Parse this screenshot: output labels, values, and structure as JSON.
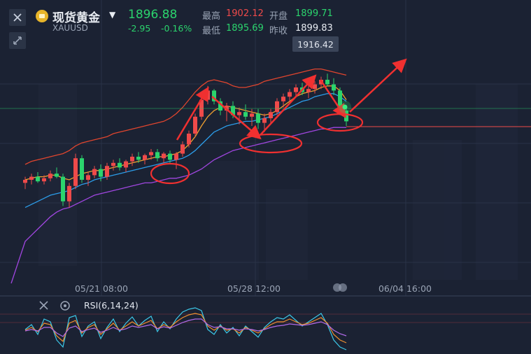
{
  "header": {
    "title": "现货黄金",
    "symbol": "XAUUSD",
    "price": "1896.88",
    "change": "-2.95",
    "change_pct": "-0.16%",
    "high_label": "最高",
    "high_value": "1902.12",
    "open_label": "开盘",
    "open_value": "1899.71",
    "low_label": "最低",
    "low_value": "1895.69",
    "prev_close_label": "昨收",
    "prev_close_value": "1899.83",
    "price_tag": "1916.42"
  },
  "icons": {
    "close": "close-icon",
    "collapse": "collapse-arrows-icon",
    "coin": "gold-coin-icon",
    "dropdown": "caret-down-icon",
    "settings": "gear-icon"
  },
  "colors": {
    "background": "#1b2233",
    "up": "#ef4a4a",
    "down": "#2bd46d",
    "annotation": "#f03030"
  },
  "chart_data": [
    {
      "type": "candlestick",
      "x_ticks": [
        "05/21 08:00",
        "05/28 12:00",
        "06/04 16:00"
      ],
      "ohlc": [
        [
          1878,
          1882,
          1874,
          1880
        ],
        [
          1880,
          1884,
          1877,
          1882
        ],
        [
          1882,
          1885,
          1878,
          1879
        ],
        [
          1879,
          1883,
          1877,
          1881
        ],
        [
          1881,
          1886,
          1879,
          1884
        ],
        [
          1884,
          1888,
          1881,
          1882
        ],
        [
          1882,
          1884,
          1863,
          1866
        ],
        [
          1866,
          1878,
          1862,
          1876
        ],
        [
          1876,
          1897,
          1874,
          1894
        ],
        [
          1894,
          1896,
          1878,
          1880
        ],
        [
          1880,
          1885,
          1876,
          1883
        ],
        [
          1883,
          1889,
          1881,
          1887
        ],
        [
          1887,
          1890,
          1879,
          1882
        ],
        [
          1882,
          1891,
          1880,
          1889
        ],
        [
          1889,
          1893,
          1886,
          1891
        ],
        [
          1891,
          1894,
          1886,
          1888
        ],
        [
          1888,
          1893,
          1885,
          1892
        ],
        [
          1892,
          1897,
          1889,
          1895
        ],
        [
          1895,
          1898,
          1891,
          1893
        ],
        [
          1893,
          1897,
          1890,
          1896
        ],
        [
          1896,
          1900,
          1893,
          1898
        ],
        [
          1898,
          1900,
          1892,
          1894
        ],
        [
          1894,
          1898,
          1891,
          1897
        ],
        [
          1897,
          1899,
          1891,
          1893
        ],
        [
          1893,
          1898,
          1887,
          1897
        ],
        [
          1897,
          1905,
          1895,
          1903
        ],
        [
          1903,
          1912,
          1901,
          1910
        ],
        [
          1910,
          1923,
          1908,
          1921
        ],
        [
          1921,
          1935,
          1919,
          1932
        ],
        [
          1932,
          1941,
          1929,
          1938
        ],
        [
          1938,
          1939,
          1929,
          1931
        ],
        [
          1931,
          1933,
          1922,
          1925
        ],
        [
          1925,
          1930,
          1918,
          1928
        ],
        [
          1928,
          1931,
          1920,
          1922
        ],
        [
          1922,
          1927,
          1916,
          1924
        ],
        [
          1924,
          1929,
          1919,
          1921
        ],
        [
          1921,
          1926,
          1915,
          1923
        ],
        [
          1923,
          1926,
          1913,
          1917
        ],
        [
          1917,
          1923,
          1911,
          1920
        ],
        [
          1920,
          1926,
          1917,
          1924
        ],
        [
          1924,
          1933,
          1922,
          1931
        ],
        [
          1931,
          1936,
          1927,
          1934
        ],
        [
          1934,
          1939,
          1930,
          1937
        ],
        [
          1937,
          1942,
          1934,
          1940
        ],
        [
          1940,
          1943,
          1935,
          1937
        ],
        [
          1937,
          1941,
          1933,
          1939
        ],
        [
          1939,
          1944,
          1936,
          1942
        ],
        [
          1942,
          1947,
          1939,
          1945
        ],
        [
          1945,
          1949,
          1941,
          1942
        ],
        [
          1942,
          1946,
          1935,
          1938
        ],
        [
          1938,
          1940,
          1922,
          1925
        ],
        [
          1925,
          1928,
          1915,
          1918
        ]
      ],
      "overlays": [
        {
          "color": "#e0452e",
          "values": [
            1890,
            1892,
            1893,
            1894,
            1895,
            1896,
            1897,
            1899,
            1902,
            1904,
            1905,
            1906,
            1907,
            1908,
            1910,
            1911,
            1912,
            1913,
            1914,
            1915,
            1916,
            1917,
            1918,
            1920,
            1923,
            1927,
            1932,
            1937,
            1941,
            1944,
            1945,
            1944,
            1943,
            1941,
            1940,
            1940,
            1941,
            1942,
            1944,
            1945,
            1946,
            1947,
            1948,
            1949,
            1950,
            1951,
            1952,
            1952,
            1951,
            1950,
            1949,
            1948
          ]
        },
        {
          "color": "#f0a030",
          "values": [
            1880,
            1881,
            1882,
            1882,
            1883,
            1883,
            1881,
            1880,
            1882,
            1884,
            1885,
            1886,
            1886,
            1887,
            1888,
            1889,
            1890,
            1891,
            1892,
            1893,
            1894,
            1895,
            1895,
            1896,
            1897,
            1899,
            1903,
            1908,
            1915,
            1921,
            1925,
            1927,
            1928,
            1927,
            1926,
            1925,
            1924,
            1923,
            1922,
            1923,
            1925,
            1928,
            1931,
            1934,
            1936,
            1937,
            1938,
            1940,
            1941,
            1941,
            1938,
            1932
          ]
        },
        {
          "color": "#2c9ce8",
          "values": [
            1862,
            1864,
            1866,
            1868,
            1870,
            1871,
            1872,
            1873,
            1875,
            1877,
            1878,
            1880,
            1881,
            1882,
            1883,
            1884,
            1885,
            1886,
            1887,
            1888,
            1889,
            1890,
            1891,
            1892,
            1893,
            1894,
            1896,
            1899,
            1903,
            1907,
            1911,
            1913,
            1915,
            1916,
            1917,
            1918,
            1918,
            1919,
            1920,
            1921,
            1923,
            1925,
            1927,
            1929,
            1931,
            1932,
            1934,
            1935,
            1936,
            1936,
            1934,
            1931
          ]
        },
        {
          "color": "#a046e0",
          "values": [
            1840,
            1844,
            1848,
            1852,
            1856,
            1859,
            1861,
            1862,
            1864,
            1866,
            1868,
            1870,
            1871,
            1872,
            1873,
            1874,
            1875,
            1876,
            1877,
            1878,
            1878,
            1879,
            1880,
            1881,
            1881,
            1882,
            1883,
            1885,
            1887,
            1890,
            1893,
            1895,
            1897,
            1899,
            1900,
            1901,
            1902,
            1903,
            1904,
            1905,
            1906,
            1907,
            1908,
            1909,
            1910,
            1911,
            1912,
            1913,
            1913,
            1914,
            1914,
            1914
          ]
        }
      ]
    },
    {
      "type": "line",
      "title": "RSI(6,14,24)",
      "series": [
        {
          "color": "#3cc8e8",
          "values": [
            55,
            62,
            48,
            70,
            66,
            40,
            30,
            72,
            75,
            45,
            60,
            66,
            42,
            58,
            70,
            52,
            64,
            73,
            60,
            68,
            74,
            52,
            66,
            56,
            70,
            80,
            84,
            86,
            82,
            55,
            48,
            62,
            50,
            58,
            46,
            60,
            52,
            44,
            58,
            66,
            72,
            70,
            76,
            68,
            60,
            66,
            72,
            78,
            62,
            40,
            30,
            26
          ]
        },
        {
          "color": "#f09030",
          "values": [
            54,
            58,
            52,
            64,
            62,
            46,
            38,
            64,
            68,
            50,
            58,
            62,
            48,
            56,
            64,
            54,
            60,
            66,
            60,
            64,
            68,
            56,
            62,
            58,
            66,
            72,
            76,
            78,
            76,
            60,
            54,
            60,
            54,
            56,
            50,
            58,
            54,
            50,
            56,
            62,
            66,
            66,
            70,
            66,
            62,
            64,
            68,
            72,
            64,
            48,
            40,
            36
          ]
        },
        {
          "color": "#b06ae8",
          "values": [
            53,
            55,
            53,
            58,
            58,
            50,
            45,
            57,
            60,
            52,
            55,
            57,
            51,
            54,
            58,
            54,
            56,
            60,
            58,
            60,
            62,
            56,
            59,
            57,
            61,
            65,
            68,
            70,
            70,
            62,
            58,
            59,
            56,
            56,
            54,
            56,
            55,
            53,
            55,
            58,
            60,
            61,
            63,
            62,
            61,
            62,
            64,
            66,
            62,
            54,
            49,
            46
          ]
        }
      ]
    }
  ]
}
